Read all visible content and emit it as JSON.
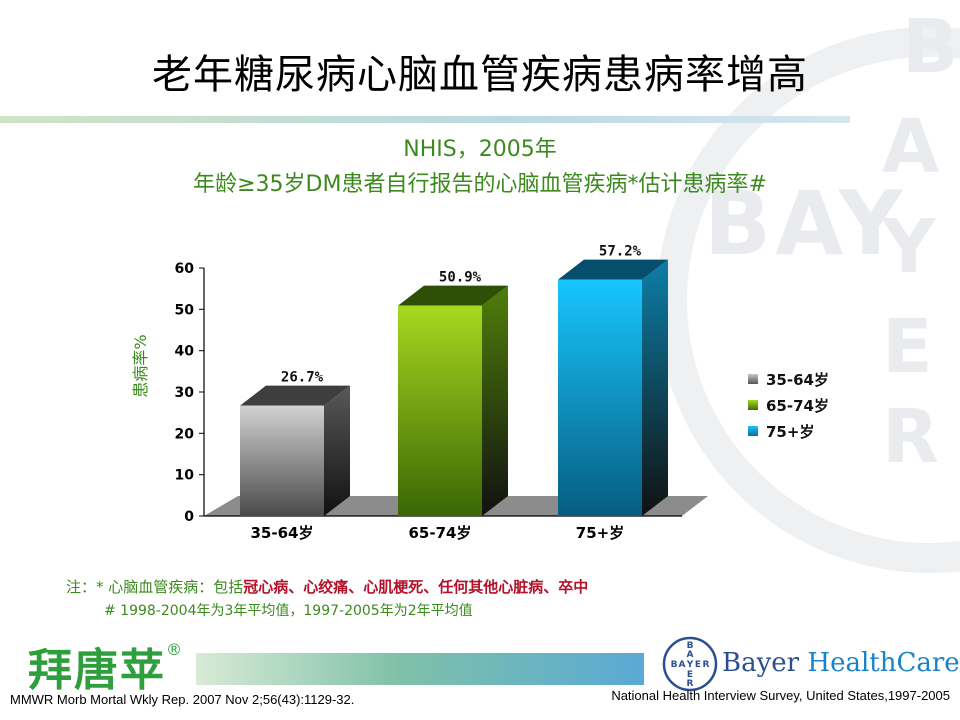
{
  "title": "老年糖尿病心脑血管疾病患病率增高",
  "subtitle_line1": "NHIS，2005年",
  "subtitle_line2": "年龄≥35岁DM患者自行报告的心脑血管疾病*估计患病率#",
  "watermark_text": "BAYER",
  "chart_data": {
    "type": "bar",
    "categories": [
      "35-64岁",
      "65-74岁",
      "75+岁"
    ],
    "values": [
      26.7,
      50.9,
      57.2
    ],
    "value_labels": [
      "26.7%",
      "50.9%",
      "57.2%"
    ],
    "ylabel": "患病率%",
    "yticks": [
      0,
      10,
      20,
      30,
      40,
      50,
      60
    ],
    "ylim": [
      0,
      60
    ],
    "colors": [
      "#8a8a8a",
      "#6ea010",
      "#1aa6cf"
    ],
    "legend": [
      "35-64岁",
      "65-74岁",
      "75+岁"
    ],
    "legend_position": "right"
  },
  "notes": {
    "prefix": "注：* 心脑血管疾病：包括",
    "highlight": "冠心病、心绞痛、心肌梗死、任何其他心脏病、卒中",
    "line2": "# 1998-2004年为3年平均值，1997-2005年为2年平均值"
  },
  "footer": {
    "brand_cn": "拜唐苹",
    "brand_mark": "®",
    "bayer_logo_text": "BAYER",
    "bayer_brand": "Bayer",
    "bayer_hc": "HealthCare",
    "ref_left": "MMWR Morb Mortal Wkly Rep. 2007 Nov 2;56(43):1129-32.",
    "ref_right": "National Health Interview Survey, United States,1997-2005"
  }
}
